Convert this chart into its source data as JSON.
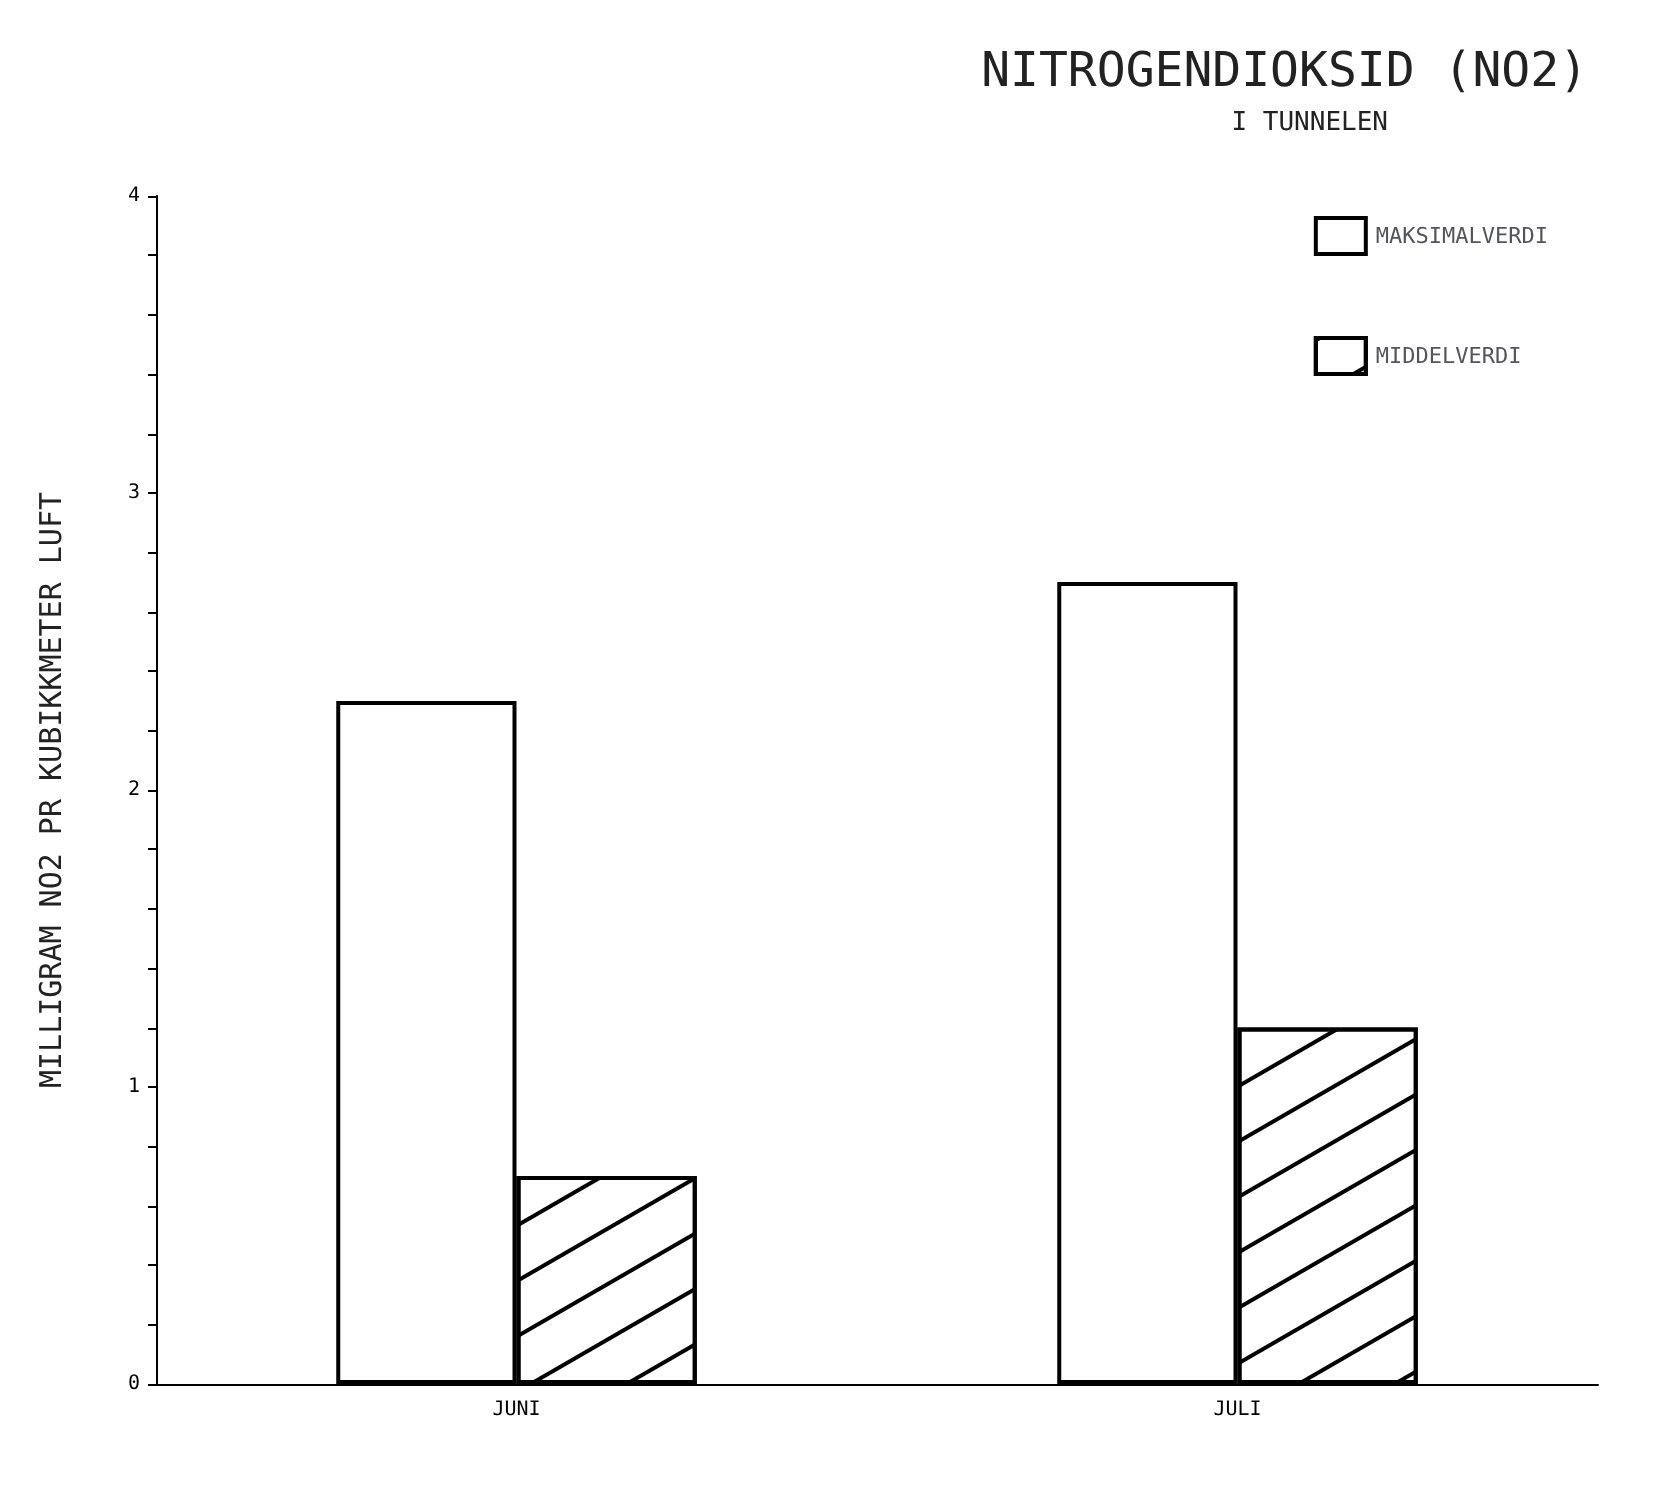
{
  "chart_data": {
    "type": "bar",
    "title": "NITROGENDIOKSID (NO2)",
    "subtitle": "I TUNNELEN",
    "ylabel": "MILLIGRAM NO2 PR KUBIKKMETER LUFT",
    "categories": [
      "JUNI",
      "JULI"
    ],
    "series": [
      {
        "name": "MAKSIMALVERDI",
        "color": "#ffffff",
        "values": [
          2.3,
          2.7
        ]
      },
      {
        "name": "MIDDELVERDI",
        "color": "#ffffff",
        "values": [
          0.7,
          1.2
        ]
      }
    ],
    "ylim": [
      0,
      4
    ],
    "yticks": [
      0,
      {
        "value": 0.2,
        "label": null
      },
      {
        "value": 0.4,
        "label": null
      },
      {
        "value": 0.6,
        "label": null
      },
      {
        "value": 0.8,
        "label": null
      },
      1,
      {
        "value": 1.2,
        "label": null
      },
      {
        "value": 1.4,
        "label": null
      },
      {
        "value": 1.6,
        "label": null
      },
      {
        "value": 1.8,
        "label": null
      },
      2,
      {
        "value": 2.2,
        "label": null
      },
      {
        "value": 2.4,
        "label": null
      },
      {
        "value": 2.6,
        "label": null
      },
      {
        "value": 2.8,
        "label": null
      },
      3,
      {
        "value": 3.2,
        "label": null
      },
      {
        "value": 3.4,
        "label": null
      },
      {
        "value": 3.6,
        "label": null
      },
      {
        "value": 3.8,
        "label": null
      },
      4
    ],
    "grid": false,
    "legend": "top right"
  }
}
